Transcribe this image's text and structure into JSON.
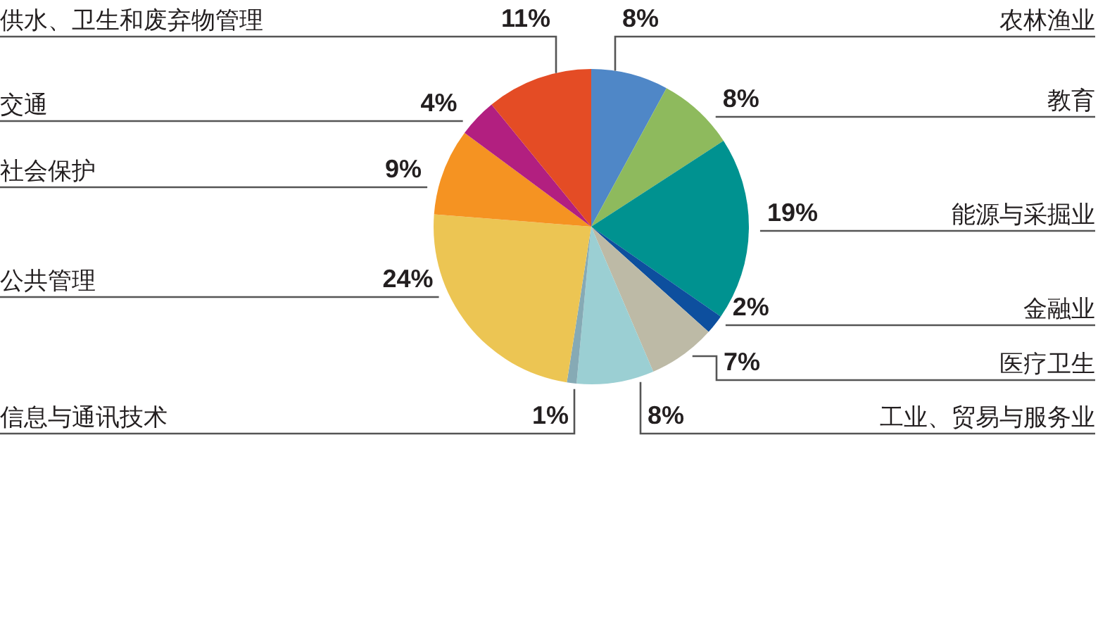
{
  "chart_data": {
    "type": "pie",
    "categories": [
      "农林渔业",
      "教育",
      "能源与采掘业",
      "金融业",
      "医疗卫生",
      "工业、贸易与服务业",
      "信息与通讯技术",
      "公共管理",
      "社会保护",
      "交通",
      "供水、卫生和废弃物管理"
    ],
    "values": [
      8,
      8,
      19,
      2,
      7,
      8,
      1,
      24,
      9,
      4,
      11
    ],
    "value_labels": [
      "8%",
      "8%",
      "19%",
      "2%",
      "7%",
      "8%",
      "1%",
      "24%",
      "9%",
      "4%",
      "11%"
    ],
    "colors": [
      "#4f87c7",
      "#8eba5d",
      "#009290",
      "#0d4f9e",
      "#bdbaa6",
      "#9bcfd3",
      "#86aab5",
      "#ecc553",
      "#f59322",
      "#b21f80",
      "#e44c25"
    ]
  }
}
